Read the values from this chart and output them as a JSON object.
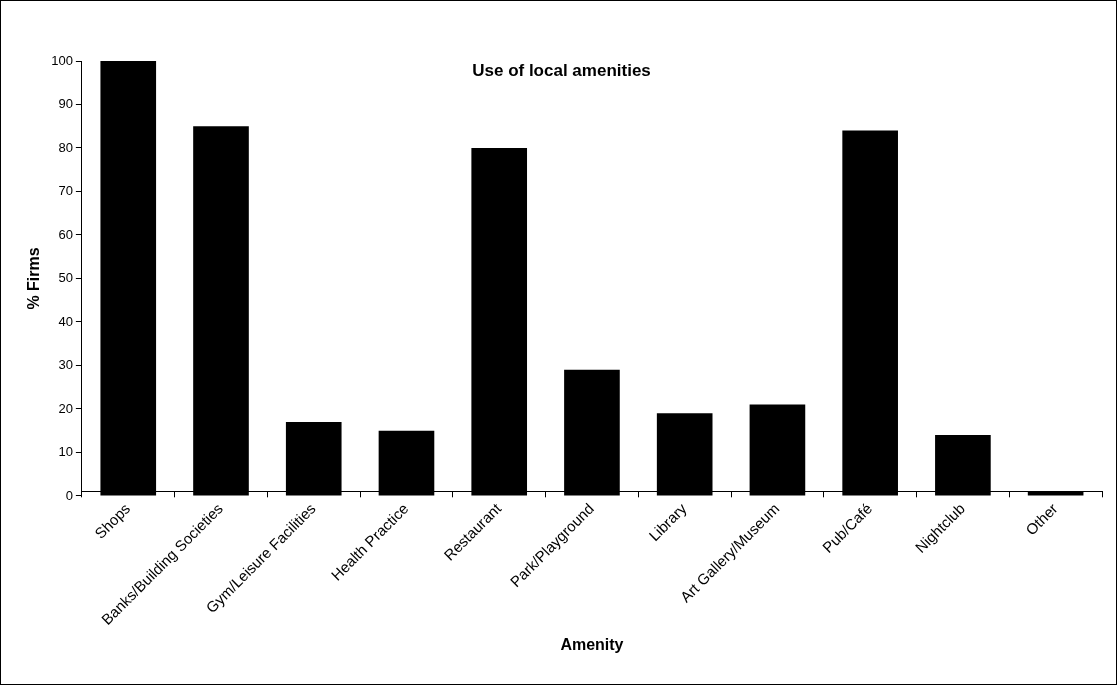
{
  "chart_data": {
    "type": "bar",
    "title": "Use of local amenities",
    "xlabel": "Amenity",
    "ylabel": "% Firms",
    "categories": [
      "Shops",
      "Banks/Building Societies",
      "Gym/Leisure Facilities",
      "Health Practice",
      "Restaurant",
      "Park/Playground",
      "Library",
      "Art Gallery/Museum",
      "Pub/Café",
      "Nightclub",
      "Other"
    ],
    "values": [
      100,
      85,
      17,
      15,
      80,
      29,
      19,
      21,
      84,
      14,
      1
    ],
    "color": "#000000",
    "ylim": [
      0,
      100
    ],
    "yticks": [
      0,
      10,
      20,
      30,
      40,
      50,
      60,
      70,
      80,
      90,
      100
    ],
    "grid": false,
    "legend": false
  }
}
